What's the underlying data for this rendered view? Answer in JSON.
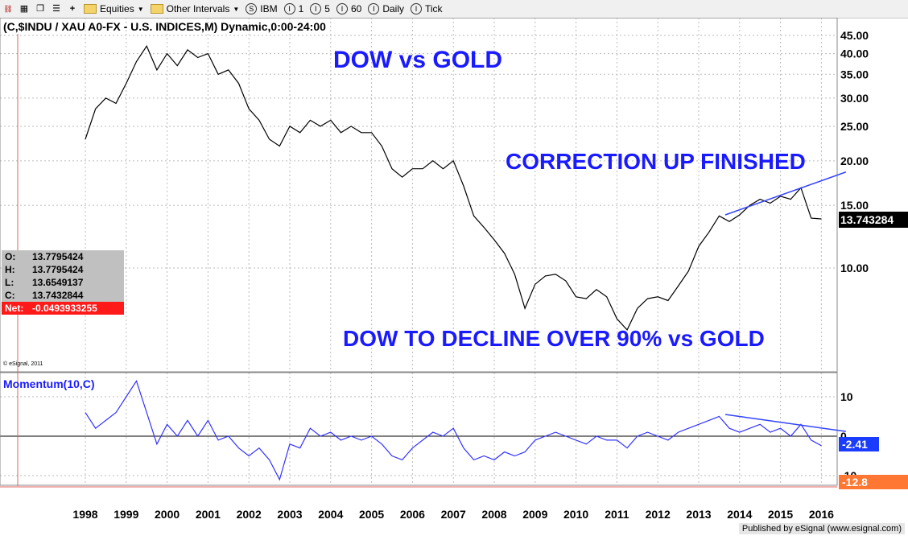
{
  "toolbar": {
    "items": [
      "Equities",
      "Other Intervals",
      "IBM",
      "1",
      "5",
      "60",
      "Daily",
      "Tick"
    ]
  },
  "chart_title": "(C,$INDU / XAU A0-FX - U.S. INDICES,M) Dynamic,0:00-24:00",
  "annotations": {
    "dow_vs_gold": "DOW vs GOLD",
    "correction": "CORRECTION UP FINISHED",
    "decline": "DOW TO DECLINE OVER 90% vs GOLD",
    "copyright": "© eSignal, 2011"
  },
  "ohlc": {
    "o_label": "O:",
    "o": "13.7795424",
    "h_label": "H:",
    "h": "13.7795424",
    "l_label": "L:",
    "l": "13.6549137",
    "c_label": "C:",
    "c": "13.7432844",
    "net_label": "Net:",
    "net": "-0.0493933255"
  },
  "price_badge": "13.743284",
  "momentum_label": "Momentum(10,C)",
  "momentum_badge": "-2.41",
  "momentum_low_badge": "-12.8",
  "footer": "Published by eSignal (www.esignal.com)",
  "colors": {
    "price_line": "#000000",
    "momentum_line": "#3333ff",
    "annotation": "#1a1aff",
    "trendline": "#3344ff",
    "net_bg": "#ff1a1a",
    "momentum_badge_bg": "#1a3cff",
    "low_badge_bg": "#ff7733"
  },
  "chart_data": {
    "type": "line",
    "price_axis": {
      "scale": "log",
      "ticks": [
        45,
        40,
        35,
        30,
        25,
        20,
        15,
        10
      ],
      "tick_labels": [
        "45.00",
        "40.00",
        "35.00",
        "30.00",
        "25.00",
        "20.00",
        "15.00",
        "10.00"
      ]
    },
    "momentum_axis": {
      "ticks": [
        10,
        0,
        -10
      ],
      "tick_labels": [
        "10",
        "0",
        "-10"
      ]
    },
    "x_axis": {
      "labels": [
        "1998",
        "1999",
        "2000",
        "2001",
        "2002",
        "2003",
        "2004",
        "2005",
        "2006",
        "2007",
        "2008",
        "2009",
        "2010",
        "2011",
        "2012",
        "2013",
        "2014",
        "2015",
        "2016"
      ]
    },
    "series": [
      {
        "x": [
          1998.0,
          1998.25,
          1998.5,
          1998.75,
          1999.0,
          1999.25,
          1999.5,
          1999.75,
          2000.0,
          2000.25,
          2000.5,
          2000.75,
          2001.0,
          2001.25,
          2001.5,
          2001.75,
          2002.0,
          2002.25,
          2002.5,
          2002.75,
          2003.0,
          2003.25,
          2003.5,
          2003.75,
          2004.0,
          2004.25,
          2004.5,
          2004.75,
          2005.0,
          2005.25,
          2005.5,
          2005.75,
          2006.0,
          2006.25,
          2006.5,
          2006.75,
          2007.0,
          2007.25,
          2007.5,
          2007.75,
          2008.0,
          2008.25,
          2008.5,
          2008.75,
          2009.0,
          2009.25,
          2009.5,
          2009.75,
          2010.0,
          2010.25,
          2010.5,
          2010.75,
          2011.0,
          2011.25,
          2011.5,
          2011.75,
          2012.0,
          2012.25,
          2012.5,
          2012.75,
          2013.0,
          2013.25,
          2013.5,
          2013.75,
          2014.0,
          2014.25,
          2014.5,
          2014.75,
          2015.0,
          2015.25,
          2015.5,
          2015.75,
          2016.0
        ],
        "values": [
          23,
          28,
          30,
          29,
          33,
          38,
          42,
          36,
          40,
          37,
          41,
          39,
          40,
          35,
          36,
          33,
          28,
          26,
          23,
          22,
          25,
          24,
          26,
          25,
          26,
          24,
          25,
          24,
          24,
          22,
          19,
          18,
          19,
          19,
          20,
          19,
          20,
          17,
          14,
          13,
          12,
          11,
          9.6,
          7.7,
          9,
          9.5,
          9.6,
          9.2,
          8.3,
          8.2,
          8.7,
          8.3,
          7.2,
          6.7,
          7.7,
          8.2,
          8.3,
          8.1,
          8.9,
          9.8,
          11.5,
          12.6,
          14,
          13.5,
          14.1,
          15,
          15.6,
          15.2,
          15.9,
          15.6,
          16.8,
          13.8,
          13.74
        ]
      },
      {
        "name": "Momentum(10,C)",
        "x": [
          1998.0,
          1998.25,
          1998.5,
          1998.75,
          1999.0,
          1999.25,
          1999.5,
          1999.75,
          2000.0,
          2000.25,
          2000.5,
          2000.75,
          2001.0,
          2001.25,
          2001.5,
          2001.75,
          2002.0,
          2002.25,
          2002.5,
          2002.75,
          2003.0,
          2003.25,
          2003.5,
          2003.75,
          2004.0,
          2004.25,
          2004.5,
          2004.75,
          2005.0,
          2005.25,
          2005.5,
          2005.75,
          2006.0,
          2006.25,
          2006.5,
          2006.75,
          2007.0,
          2007.25,
          2007.5,
          2007.75,
          2008.0,
          2008.25,
          2008.5,
          2008.75,
          2009.0,
          2009.25,
          2009.5,
          2009.75,
          2010.0,
          2010.25,
          2010.5,
          2010.75,
          2011.0,
          2011.25,
          2011.5,
          2011.75,
          2012.0,
          2012.25,
          2012.5,
          2012.75,
          2013.0,
          2013.25,
          2013.5,
          2013.75,
          2014.0,
          2014.25,
          2014.5,
          2014.75,
          2015.0,
          2015.25,
          2015.5,
          2015.75,
          2016.0
        ],
        "values": [
          6,
          2,
          4,
          6,
          10,
          14,
          6,
          -2,
          3,
          0,
          4,
          0,
          4,
          -1,
          0,
          -3,
          -5,
          -3,
          -6,
          -11,
          -2,
          -3,
          2,
          0,
          1,
          -1,
          0,
          -1,
          0,
          -2,
          -5,
          -6,
          -3,
          -1,
          1,
          0,
          2,
          -3,
          -6,
          -5,
          -6,
          -4,
          -5,
          -4,
          -1,
          0,
          1,
          0,
          -1,
          -2,
          0,
          -1,
          -1,
          -3,
          0,
          1,
          0,
          -1,
          1,
          2,
          3,
          4,
          5,
          2,
          1,
          2,
          3,
          1,
          2,
          0,
          3,
          -1,
          -2.41
        ]
      }
    ],
    "trendlines": [
      {
        "panel": "price",
        "x": [
          2013.65,
          2016.6
        ],
        "values": [
          14.1,
          18.6
        ]
      },
      {
        "panel": "momentum",
        "x": [
          2013.65,
          2016.6
        ],
        "values": [
          5.5,
          1.2
        ]
      }
    ],
    "grid": true
  }
}
